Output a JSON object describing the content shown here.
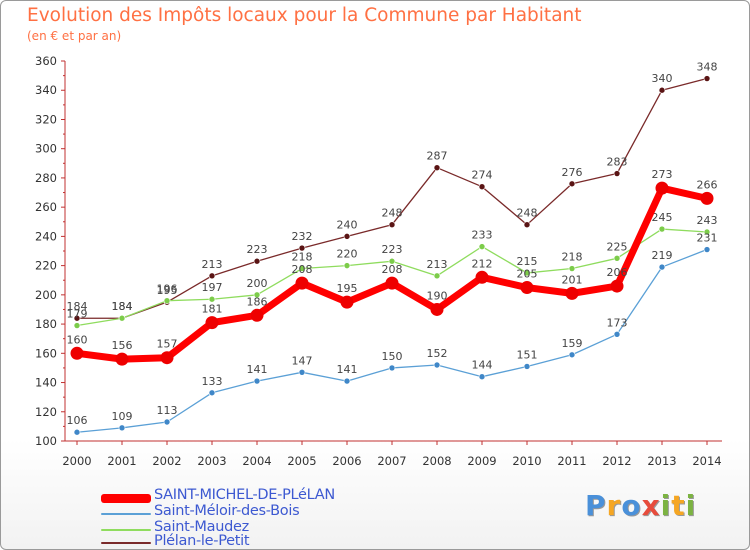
{
  "title": "Evolution des Impôts locaux pour la Commune par Habitant",
  "subtitle": "(en € et par an)",
  "brand": {
    "letters": [
      "P",
      "r",
      "o",
      "x",
      "i",
      "t",
      "i"
    ],
    "colors": [
      "#4a90d9",
      "#f5a623",
      "#4a90d9",
      "#e74c3c",
      "#7cb342",
      "#f5a623",
      "#7cb342"
    ]
  },
  "chart_data": {
    "type": "line",
    "title": "Evolution des Impôts locaux pour la Commune par Habitant",
    "ylabel": "(en € et par an)",
    "xlabel": "",
    "ylim": [
      100,
      360
    ],
    "yticks": [
      100,
      120,
      140,
      160,
      180,
      200,
      220,
      240,
      260,
      280,
      300,
      320,
      340,
      360
    ],
    "categories": [
      "2000",
      "2001",
      "2002",
      "2003",
      "2004",
      "2005",
      "2006",
      "2007",
      "2008",
      "2009",
      "2010",
      "2011",
      "2012",
      "2013",
      "2014"
    ],
    "grid": false,
    "legend_position": "bottom-left",
    "series": [
      {
        "name": "Plélan-le-Petit",
        "color": "#7a2a2a",
        "values": [
          184,
          184,
          195,
          213,
          223,
          232,
          240,
          248,
          287,
          274,
          248,
          276,
          283,
          340,
          348
        ]
      },
      {
        "name": "Saint-Maudez",
        "color": "#8fdc5e",
        "values": [
          179,
          184,
          196,
          197,
          200,
          218,
          220,
          223,
          213,
          233,
          215,
          218,
          225,
          245,
          243
        ]
      },
      {
        "name": "Saint-Méloir-des-Bois",
        "color": "#5ba0d6",
        "values": [
          106,
          109,
          113,
          133,
          141,
          147,
          141,
          150,
          152,
          144,
          151,
          159,
          173,
          219,
          231
        ]
      },
      {
        "name": "SAINT-MICHEL-DE-PLéLAN",
        "color": "#ff0000",
        "values": [
          160,
          156,
          157,
          181,
          186,
          208,
          195,
          208,
          190,
          212,
          205,
          201,
          206,
          273,
          266
        ]
      }
    ],
    "legend_order": [
      "SAINT-MICHEL-DE-PLéLAN",
      "Saint-Méloir-des-Bois",
      "Saint-Maudez",
      "Plélan-le-Petit"
    ]
  }
}
